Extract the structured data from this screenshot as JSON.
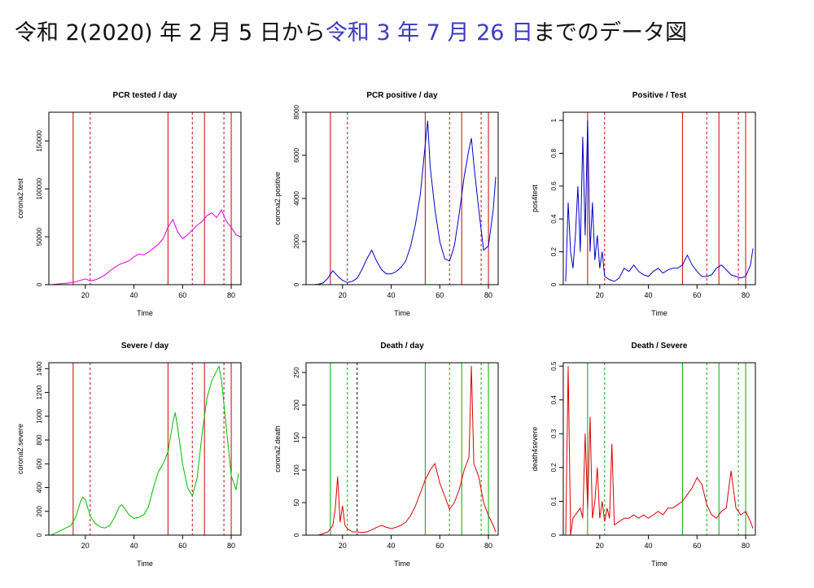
{
  "header": {
    "title_part1": "令和 2(2020) 年 2 月 5 日から",
    "title_part2": "令和 3 年 7 月 26 日",
    "title_part3": "までのデータ図"
  },
  "colors": {
    "title_highlight": "#3c3cbf",
    "vline_red": "#cc0000",
    "vline_green": "#00aa00"
  },
  "chart_data": [
    {
      "type": "line",
      "title": "PCR tested / day",
      "xlabel": "Time",
      "ylabel": "corona2.test",
      "xlim": [
        5,
        84
      ],
      "ylim": [
        0,
        180000
      ],
      "xticks": [
        20,
        40,
        60,
        80
      ],
      "yticks": [
        0,
        50000,
        100000,
        150000
      ],
      "series": [
        {
          "color": "#e000e0",
          "x": [
            6,
            8,
            10,
            12,
            14,
            16,
            18,
            20,
            22,
            24,
            26,
            28,
            30,
            32,
            34,
            36,
            38,
            40,
            42,
            44,
            46,
            48,
            50,
            52,
            54,
            56,
            58,
            60,
            62,
            64,
            66,
            68,
            70,
            72,
            74,
            76,
            78,
            80,
            82,
            84
          ],
          "y": [
            0,
            500,
            1000,
            1500,
            2000,
            3000,
            4500,
            6000,
            4000,
            5000,
            7000,
            10000,
            14000,
            18000,
            21000,
            23000,
            25000,
            29000,
            32000,
            31000,
            34000,
            38000,
            42000,
            48000,
            60000,
            68000,
            55000,
            48000,
            52000,
            57000,
            62000,
            66000,
            72000,
            75000,
            70000,
            78000,
            66000,
            60000,
            52000,
            50000
          ]
        }
      ],
      "vlines": [
        {
          "x": 15,
          "style": "solid",
          "color": "#cc0000"
        },
        {
          "x": 22,
          "style": "dashed",
          "color": "#cc0000"
        },
        {
          "x": 54,
          "style": "solid",
          "color": "#cc0000"
        },
        {
          "x": 64,
          "style": "dashed",
          "color": "#cc0000"
        },
        {
          "x": 69,
          "style": "solid",
          "color": "#cc0000"
        },
        {
          "x": 77,
          "style": "dashed",
          "color": "#cc0000"
        },
        {
          "x": 80,
          "style": "solid",
          "color": "#cc0000"
        }
      ]
    },
    {
      "type": "line",
      "title": "PCR positive / day",
      "xlabel": "Time",
      "ylabel": "corona2.positive",
      "xlim": [
        5,
        84
      ],
      "ylim": [
        0,
        8000
      ],
      "xticks": [
        20,
        40,
        60,
        80
      ],
      "yticks": [
        0,
        2000,
        4000,
        6000,
        8000
      ],
      "series": [
        {
          "color": "#0000cc",
          "x": [
            6,
            8,
            10,
            12,
            14,
            15,
            16,
            18,
            20,
            22,
            24,
            26,
            28,
            30,
            32,
            34,
            36,
            38,
            40,
            42,
            44,
            46,
            48,
            50,
            52,
            54,
            55,
            56,
            58,
            60,
            62,
            64,
            66,
            68,
            70,
            72,
            73,
            74,
            76,
            78,
            80,
            82,
            83
          ],
          "y": [
            0,
            0,
            20,
            80,
            300,
            500,
            650,
            400,
            200,
            100,
            150,
            300,
            700,
            1200,
            1600,
            1100,
            700,
            500,
            500,
            600,
            800,
            1100,
            1800,
            2800,
            4200,
            6500,
            7600,
            5500,
            3500,
            2000,
            1200,
            1100,
            1800,
            3300,
            5000,
            6300,
            6800,
            5600,
            3500,
            1600,
            1800,
            3500,
            5000
          ]
        }
      ],
      "vlines": [
        {
          "x": 15,
          "style": "solid",
          "color": "#cc0000"
        },
        {
          "x": 22,
          "style": "dashed",
          "color": "#cc0000"
        },
        {
          "x": 54,
          "style": "solid",
          "color": "#cc0000"
        },
        {
          "x": 64,
          "style": "dashed",
          "color": "#cc0000"
        },
        {
          "x": 69,
          "style": "solid",
          "color": "#cc0000"
        },
        {
          "x": 77,
          "style": "dashed",
          "color": "#cc0000"
        },
        {
          "x": 80,
          "style": "solid",
          "color": "#cc0000"
        }
      ]
    },
    {
      "type": "line",
      "title": "Positive / Test",
      "xlabel": "Time",
      "ylabel": "pos4test",
      "xlim": [
        5,
        84
      ],
      "ylim": [
        0,
        1.05
      ],
      "xticks": [
        20,
        40,
        60,
        80
      ],
      "yticks": [
        0.0,
        0.2,
        0.4,
        0.6,
        0.8,
        1.0
      ],
      "series": [
        {
          "color": "#0000cc",
          "x": [
            6,
            7,
            8,
            9,
            10,
            11,
            12,
            13,
            14,
            15,
            16,
            17,
            18,
            19,
            20,
            21,
            22,
            24,
            26,
            28,
            30,
            32,
            34,
            36,
            38,
            40,
            42,
            44,
            46,
            48,
            50,
            52,
            54,
            56,
            58,
            60,
            62,
            64,
            66,
            68,
            70,
            72,
            74,
            76,
            78,
            80,
            82,
            83
          ],
          "y": [
            0.02,
            0.5,
            0.2,
            0.1,
            0.3,
            0.6,
            0.2,
            0.9,
            0.3,
            1.0,
            0.2,
            0.5,
            0.15,
            0.3,
            0.1,
            0.2,
            0.05,
            0.03,
            0.02,
            0.04,
            0.1,
            0.08,
            0.12,
            0.08,
            0.06,
            0.05,
            0.08,
            0.1,
            0.07,
            0.09,
            0.1,
            0.1,
            0.12,
            0.18,
            0.12,
            0.08,
            0.05,
            0.05,
            0.06,
            0.1,
            0.12,
            0.09,
            0.06,
            0.05,
            0.04,
            0.05,
            0.12,
            0.22
          ]
        }
      ],
      "vlines": [
        {
          "x": 15,
          "style": "solid",
          "color": "#cc0000"
        },
        {
          "x": 22,
          "style": "dashed",
          "color": "#cc0000"
        },
        {
          "x": 54,
          "style": "solid",
          "color": "#cc0000"
        },
        {
          "x": 64,
          "style": "dashed",
          "color": "#cc0000"
        },
        {
          "x": 69,
          "style": "solid",
          "color": "#cc0000"
        },
        {
          "x": 77,
          "style": "dashed",
          "color": "#cc0000"
        },
        {
          "x": 80,
          "style": "solid",
          "color": "#cc0000"
        }
      ]
    },
    {
      "type": "line",
      "title": "Severe / day",
      "xlabel": "Time",
      "ylabel": "corona2.severe",
      "xlim": [
        5,
        84
      ],
      "ylim": [
        0,
        1450
      ],
      "xticks": [
        20,
        40,
        60,
        80
      ],
      "yticks": [
        0,
        200,
        400,
        600,
        800,
        1000,
        1200,
        1400
      ],
      "series": [
        {
          "color": "#00bb00",
          "x": [
            6,
            8,
            10,
            12,
            14,
            16,
            18,
            19,
            20,
            22,
            24,
            26,
            28,
            30,
            32,
            34,
            35,
            36,
            38,
            40,
            42,
            44,
            46,
            48,
            50,
            52,
            54,
            56,
            57,
            58,
            60,
            62,
            64,
            66,
            68,
            70,
            72,
            74,
            75,
            76,
            78,
            80,
            82,
            83
          ],
          "y": [
            0,
            20,
            40,
            60,
            80,
            150,
            280,
            320,
            300,
            160,
            100,
            70,
            60,
            80,
            150,
            240,
            255,
            230,
            170,
            140,
            150,
            170,
            240,
            400,
            530,
            600,
            700,
            950,
            1030,
            900,
            600,
            400,
            330,
            480,
            850,
            1150,
            1300,
            1380,
            1420,
            1300,
            900,
            500,
            380,
            520
          ]
        }
      ],
      "vlines": [
        {
          "x": 15,
          "style": "solid",
          "color": "#cc0000"
        },
        {
          "x": 22,
          "style": "dashed",
          "color": "#cc0000"
        },
        {
          "x": 54,
          "style": "solid",
          "color": "#cc0000"
        },
        {
          "x": 64,
          "style": "dashed",
          "color": "#cc0000"
        },
        {
          "x": 69,
          "style": "solid",
          "color": "#cc0000"
        },
        {
          "x": 77,
          "style": "dashed",
          "color": "#cc0000"
        },
        {
          "x": 80,
          "style": "solid",
          "color": "#cc0000"
        }
      ]
    },
    {
      "type": "line",
      "title": "Death / day",
      "xlabel": "Time",
      "ylabel": "corona2.death",
      "xlim": [
        5,
        84
      ],
      "ylim": [
        0,
        265
      ],
      "xticks": [
        20,
        40,
        60,
        80
      ],
      "yticks": [
        0,
        50,
        100,
        150,
        200,
        250
      ],
      "series": [
        {
          "color": "#dd0000",
          "x": [
            6,
            8,
            10,
            12,
            14,
            16,
            17,
            18,
            19,
            20,
            21,
            22,
            24,
            26,
            28,
            30,
            32,
            34,
            36,
            38,
            40,
            42,
            44,
            46,
            48,
            50,
            52,
            54,
            56,
            58,
            60,
            62,
            64,
            66,
            68,
            70,
            72,
            73,
            74,
            76,
            78,
            80,
            82,
            83
          ],
          "y": [
            0,
            0,
            0,
            2,
            5,
            15,
            40,
            90,
            20,
            45,
            15,
            10,
            5,
            5,
            4,
            5,
            8,
            12,
            15,
            12,
            10,
            12,
            15,
            20,
            30,
            45,
            65,
            85,
            100,
            110,
            80,
            60,
            40,
            50,
            70,
            100,
            120,
            260,
            110,
            90,
            50,
            30,
            15,
            5
          ]
        }
      ],
      "vlines": [
        {
          "x": 15,
          "style": "solid",
          "color": "#00aa00"
        },
        {
          "x": 22,
          "style": "dashed",
          "color": "#00aa00"
        },
        {
          "x": 26,
          "style": "dashed",
          "color": "#000000"
        },
        {
          "x": 54,
          "style": "solid",
          "color": "#00aa00"
        },
        {
          "x": 64,
          "style": "dashed",
          "color": "#00aa00"
        },
        {
          "x": 69,
          "style": "solid",
          "color": "#00aa00"
        },
        {
          "x": 77,
          "style": "dashed",
          "color": "#00aa00"
        },
        {
          "x": 80,
          "style": "solid",
          "color": "#00aa00"
        }
      ]
    },
    {
      "type": "line",
      "title": "Death / Severe",
      "xlabel": "Time",
      "ylabel": "death4severe",
      "xlim": [
        5,
        84
      ],
      "ylim": [
        0,
        0.51
      ],
      "xticks": [
        20,
        40,
        60,
        80
      ],
      "yticks": [
        0.0,
        0.1,
        0.2,
        0.3,
        0.4,
        0.5
      ],
      "series": [
        {
          "color": "#dd0000",
          "x": [
            6,
            7,
            8,
            9,
            10,
            12,
            13,
            14,
            15,
            16,
            17,
            18,
            19,
            20,
            21,
            22,
            23,
            24,
            25,
            26,
            28,
            30,
            32,
            34,
            36,
            38,
            40,
            42,
            44,
            46,
            48,
            50,
            52,
            54,
            56,
            58,
            60,
            62,
            64,
            66,
            68,
            70,
            72,
            74,
            76,
            78,
            80,
            82,
            83
          ],
          "y": [
            0,
            0.5,
            0,
            0.05,
            0.06,
            0.08,
            0.05,
            0.3,
            0.08,
            0.35,
            0.05,
            0.1,
            0.2,
            0.05,
            0.1,
            0.04,
            0.08,
            0.05,
            0.27,
            0.03,
            0.04,
            0.05,
            0.05,
            0.06,
            0.05,
            0.06,
            0.05,
            0.06,
            0.07,
            0.06,
            0.08,
            0.08,
            0.09,
            0.1,
            0.12,
            0.14,
            0.17,
            0.15,
            0.09,
            0.06,
            0.05,
            0.07,
            0.08,
            0.19,
            0.08,
            0.06,
            0.07,
            0.04,
            0.02
          ]
        }
      ],
      "vlines": [
        {
          "x": 15,
          "style": "solid",
          "color": "#00aa00"
        },
        {
          "x": 22,
          "style": "dashed",
          "color": "#00aa00"
        },
        {
          "x": 54,
          "style": "solid",
          "color": "#00aa00"
        },
        {
          "x": 64,
          "style": "dashed",
          "color": "#00aa00"
        },
        {
          "x": 69,
          "style": "solid",
          "color": "#00aa00"
        },
        {
          "x": 77,
          "style": "dashed",
          "color": "#00aa00"
        },
        {
          "x": 80,
          "style": "solid",
          "color": "#00aa00"
        }
      ]
    }
  ]
}
